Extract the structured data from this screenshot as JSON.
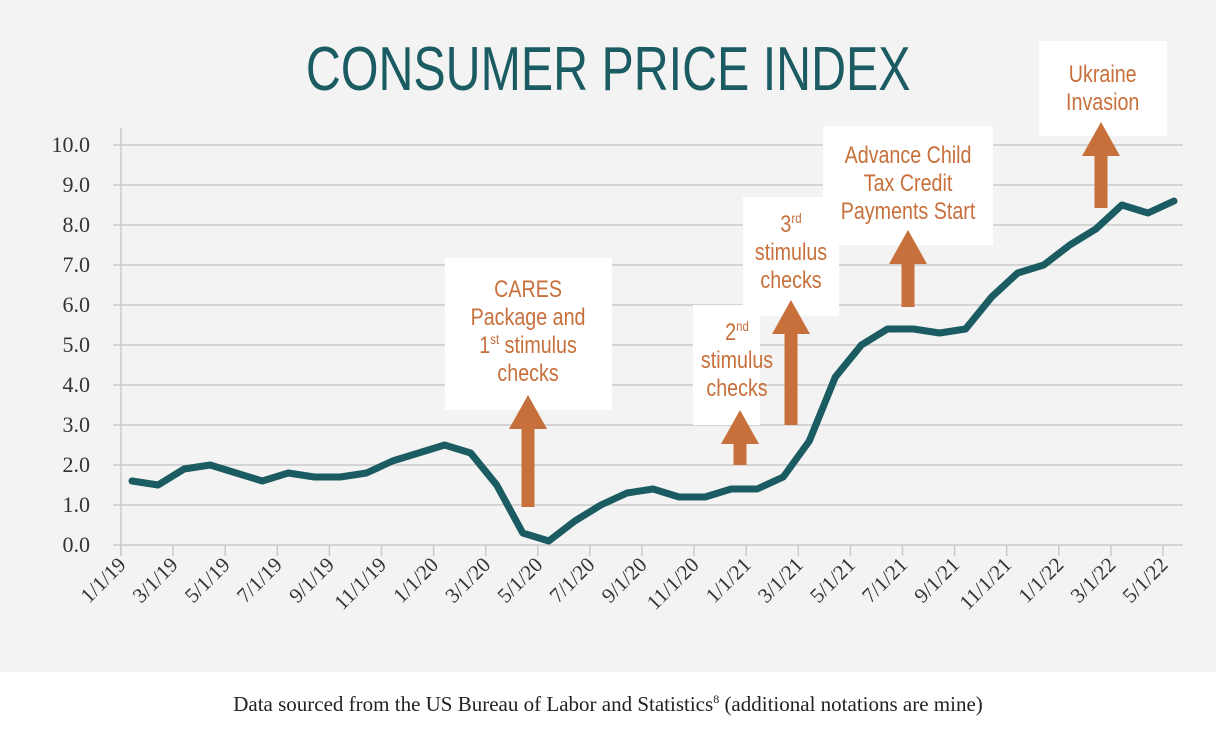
{
  "chart_data": {
    "type": "line",
    "title": "CONSUMER PRICE INDEX",
    "xlabel": "",
    "ylabel": "",
    "ylim": [
      0,
      10
    ],
    "yticks": [
      "0.0",
      "1.0",
      "2.0",
      "3.0",
      "4.0",
      "5.0",
      "6.0",
      "7.0",
      "8.0",
      "9.0",
      "10.0"
    ],
    "xticks": [
      "1/1/19",
      "3/1/19",
      "5/1/19",
      "7/1/19",
      "9/1/19",
      "11/1/19",
      "1/1/20",
      "3/1/20",
      "5/1/20",
      "7/1/20",
      "9/1/20",
      "11/1/20",
      "1/1/21",
      "3/1/21",
      "5/1/21",
      "7/1/21",
      "9/1/21",
      "11/1/21",
      "1/1/22",
      "3/1/22",
      "5/1/22"
    ],
    "grid": "horizontal",
    "line_color": "#1b5b62",
    "x": [
      "1/1/19",
      "2/1/19",
      "3/1/19",
      "4/1/19",
      "5/1/19",
      "6/1/19",
      "7/1/19",
      "8/1/19",
      "9/1/19",
      "10/1/19",
      "11/1/19",
      "12/1/19",
      "1/1/20",
      "2/1/20",
      "3/1/20",
      "4/1/20",
      "5/1/20",
      "6/1/20",
      "7/1/20",
      "8/1/20",
      "9/1/20",
      "10/1/20",
      "11/1/20",
      "12/1/20",
      "1/1/21",
      "2/1/21",
      "3/1/21",
      "4/1/21",
      "5/1/21",
      "6/1/21",
      "7/1/21",
      "8/1/21",
      "9/1/21",
      "10/1/21",
      "11/1/21",
      "12/1/21",
      "1/1/22",
      "2/1/22",
      "3/1/22",
      "4/1/22",
      "5/1/22"
    ],
    "values": [
      1.6,
      1.5,
      1.9,
      2.0,
      1.8,
      1.6,
      1.8,
      1.7,
      1.7,
      1.8,
      2.1,
      2.3,
      2.5,
      2.3,
      1.5,
      0.3,
      0.1,
      0.6,
      1.0,
      1.3,
      1.4,
      1.2,
      1.2,
      1.4,
      1.4,
      1.7,
      2.6,
      4.2,
      5.0,
      5.4,
      5.4,
      5.3,
      5.4,
      6.2,
      6.8,
      7.0,
      7.5,
      7.9,
      8.5,
      8.3,
      8.6
    ],
    "annotation_color": "#c8703b",
    "annotations": [
      {
        "l1": "CARES",
        "l2": "Package and",
        "l3a": "1",
        "l3sup": "st",
        "l3b": " stimulus",
        "l4": "checks"
      },
      {
        "l1a": "2",
        "l1sup": "nd",
        "l2": "stimulus",
        "l3": "checks"
      },
      {
        "l1a": "3",
        "l1sup": "rd",
        "l2": "stimulus",
        "l3": "checks"
      },
      {
        "l1": "Advance Child",
        "l2": "Tax Credit",
        "l3": "Payments Start"
      },
      {
        "l1": "Ukraine",
        "l2": "Invasion"
      }
    ]
  },
  "caption": {
    "text": "Data sourced from the US Bureau of Labor and Statistics",
    "sup": "8",
    "rest": " (additional notations are mine)"
  }
}
